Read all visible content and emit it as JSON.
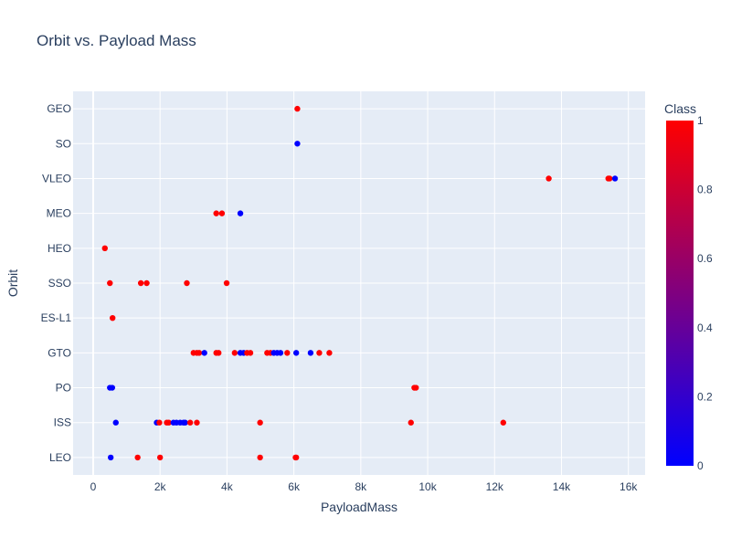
{
  "chart_data": {
    "type": "scatter",
    "title": "Orbit vs. Payload Mass",
    "xlabel": "PayloadMass",
    "ylabel": "Orbit",
    "xlim": [
      -600,
      16500
    ],
    "x_ticks": [
      {
        "value": 0,
        "label": "0"
      },
      {
        "value": 2000,
        "label": "2k"
      },
      {
        "value": 4000,
        "label": "4k"
      },
      {
        "value": 6000,
        "label": "6k"
      },
      {
        "value": 8000,
        "label": "8k"
      },
      {
        "value": 10000,
        "label": "10k"
      },
      {
        "value": 12000,
        "label": "12k"
      },
      {
        "value": 14000,
        "label": "14k"
      },
      {
        "value": 16000,
        "label": "16k"
      }
    ],
    "categories": [
      "LEO",
      "ISS",
      "PO",
      "GTO",
      "ES-L1",
      "SSO",
      "HEO",
      "MEO",
      "VLEO",
      "SO",
      "GEO"
    ],
    "grid": true,
    "colorbar": {
      "title": "Class",
      "range": [
        0,
        1
      ],
      "ticks": [
        "0",
        "0.2",
        "0.4",
        "0.6",
        "0.8",
        "1"
      ],
      "tick_values": [
        0,
        0.2,
        0.4,
        0.6,
        0.8,
        1
      ],
      "colorscale": [
        "#0000ff",
        "#ff0000"
      ],
      "placement": "right"
    },
    "points": [
      {
        "x": 525,
        "y": "LEO",
        "class": 0
      },
      {
        "x": 1330,
        "y": "LEO",
        "class": 1
      },
      {
        "x": 2000,
        "y": "LEO",
        "class": 1
      },
      {
        "x": 4990,
        "y": "LEO",
        "class": 1
      },
      {
        "x": 6050,
        "y": "LEO",
        "class": 1
      },
      {
        "x": 6070,
        "y": "LEO",
        "class": 1
      },
      {
        "x": 677,
        "y": "ISS",
        "class": 0
      },
      {
        "x": 1900,
        "y": "ISS",
        "class": 0
      },
      {
        "x": 1980,
        "y": "ISS",
        "class": 1
      },
      {
        "x": 2200,
        "y": "ISS",
        "class": 1
      },
      {
        "x": 2260,
        "y": "ISS",
        "class": 1
      },
      {
        "x": 2400,
        "y": "ISS",
        "class": 0
      },
      {
        "x": 2490,
        "y": "ISS",
        "class": 0
      },
      {
        "x": 2600,
        "y": "ISS",
        "class": 0
      },
      {
        "x": 2700,
        "y": "ISS",
        "class": 0
      },
      {
        "x": 2750,
        "y": "ISS",
        "class": 0
      },
      {
        "x": 2900,
        "y": "ISS",
        "class": 1
      },
      {
        "x": 3100,
        "y": "ISS",
        "class": 1
      },
      {
        "x": 4990,
        "y": "ISS",
        "class": 1
      },
      {
        "x": 9500,
        "y": "ISS",
        "class": 1
      },
      {
        "x": 12260,
        "y": "ISS",
        "class": 1
      },
      {
        "x": 500,
        "y": "PO",
        "class": 0
      },
      {
        "x": 570,
        "y": "PO",
        "class": 0
      },
      {
        "x": 9600,
        "y": "PO",
        "class": 1
      },
      {
        "x": 9650,
        "y": "PO",
        "class": 1
      },
      {
        "x": 3000,
        "y": "GTO",
        "class": 1
      },
      {
        "x": 3100,
        "y": "GTO",
        "class": 1
      },
      {
        "x": 3170,
        "y": "GTO",
        "class": 1
      },
      {
        "x": 3325,
        "y": "GTO",
        "class": 0
      },
      {
        "x": 3680,
        "y": "GTO",
        "class": 1
      },
      {
        "x": 3750,
        "y": "GTO",
        "class": 1
      },
      {
        "x": 4230,
        "y": "GTO",
        "class": 1
      },
      {
        "x": 4400,
        "y": "GTO",
        "class": 0
      },
      {
        "x": 4500,
        "y": "GTO",
        "class": 0
      },
      {
        "x": 4600,
        "y": "GTO",
        "class": 1
      },
      {
        "x": 4700,
        "y": "GTO",
        "class": 1
      },
      {
        "x": 5200,
        "y": "GTO",
        "class": 1
      },
      {
        "x": 5300,
        "y": "GTO",
        "class": 1
      },
      {
        "x": 5400,
        "y": "GTO",
        "class": 0
      },
      {
        "x": 5500,
        "y": "GTO",
        "class": 0
      },
      {
        "x": 5600,
        "y": "GTO",
        "class": 0
      },
      {
        "x": 5800,
        "y": "GTO",
        "class": 1
      },
      {
        "x": 6070,
        "y": "GTO",
        "class": 0
      },
      {
        "x": 6500,
        "y": "GTO",
        "class": 0
      },
      {
        "x": 6760,
        "y": "GTO",
        "class": 1
      },
      {
        "x": 7060,
        "y": "GTO",
        "class": 1
      },
      {
        "x": 580,
        "y": "ES-L1",
        "class": 1
      },
      {
        "x": 500,
        "y": "SSO",
        "class": 1
      },
      {
        "x": 1425,
        "y": "SSO",
        "class": 1
      },
      {
        "x": 1600,
        "y": "SSO",
        "class": 1
      },
      {
        "x": 2800,
        "y": "SSO",
        "class": 1
      },
      {
        "x": 3990,
        "y": "SSO",
        "class": 1
      },
      {
        "x": 350,
        "y": "HEO",
        "class": 1
      },
      {
        "x": 3680,
        "y": "MEO",
        "class": 1
      },
      {
        "x": 3850,
        "y": "MEO",
        "class": 1
      },
      {
        "x": 4400,
        "y": "MEO",
        "class": 0
      },
      {
        "x": 13620,
        "y": "VLEO",
        "class": 1
      },
      {
        "x": 15400,
        "y": "VLEO",
        "class": 1
      },
      {
        "x": 15440,
        "y": "VLEO",
        "class": 1
      },
      {
        "x": 15600,
        "y": "VLEO",
        "class": 0
      },
      {
        "x": 6104,
        "y": "SO",
        "class": 0
      },
      {
        "x": 6104,
        "y": "GEO",
        "class": 1
      }
    ]
  }
}
